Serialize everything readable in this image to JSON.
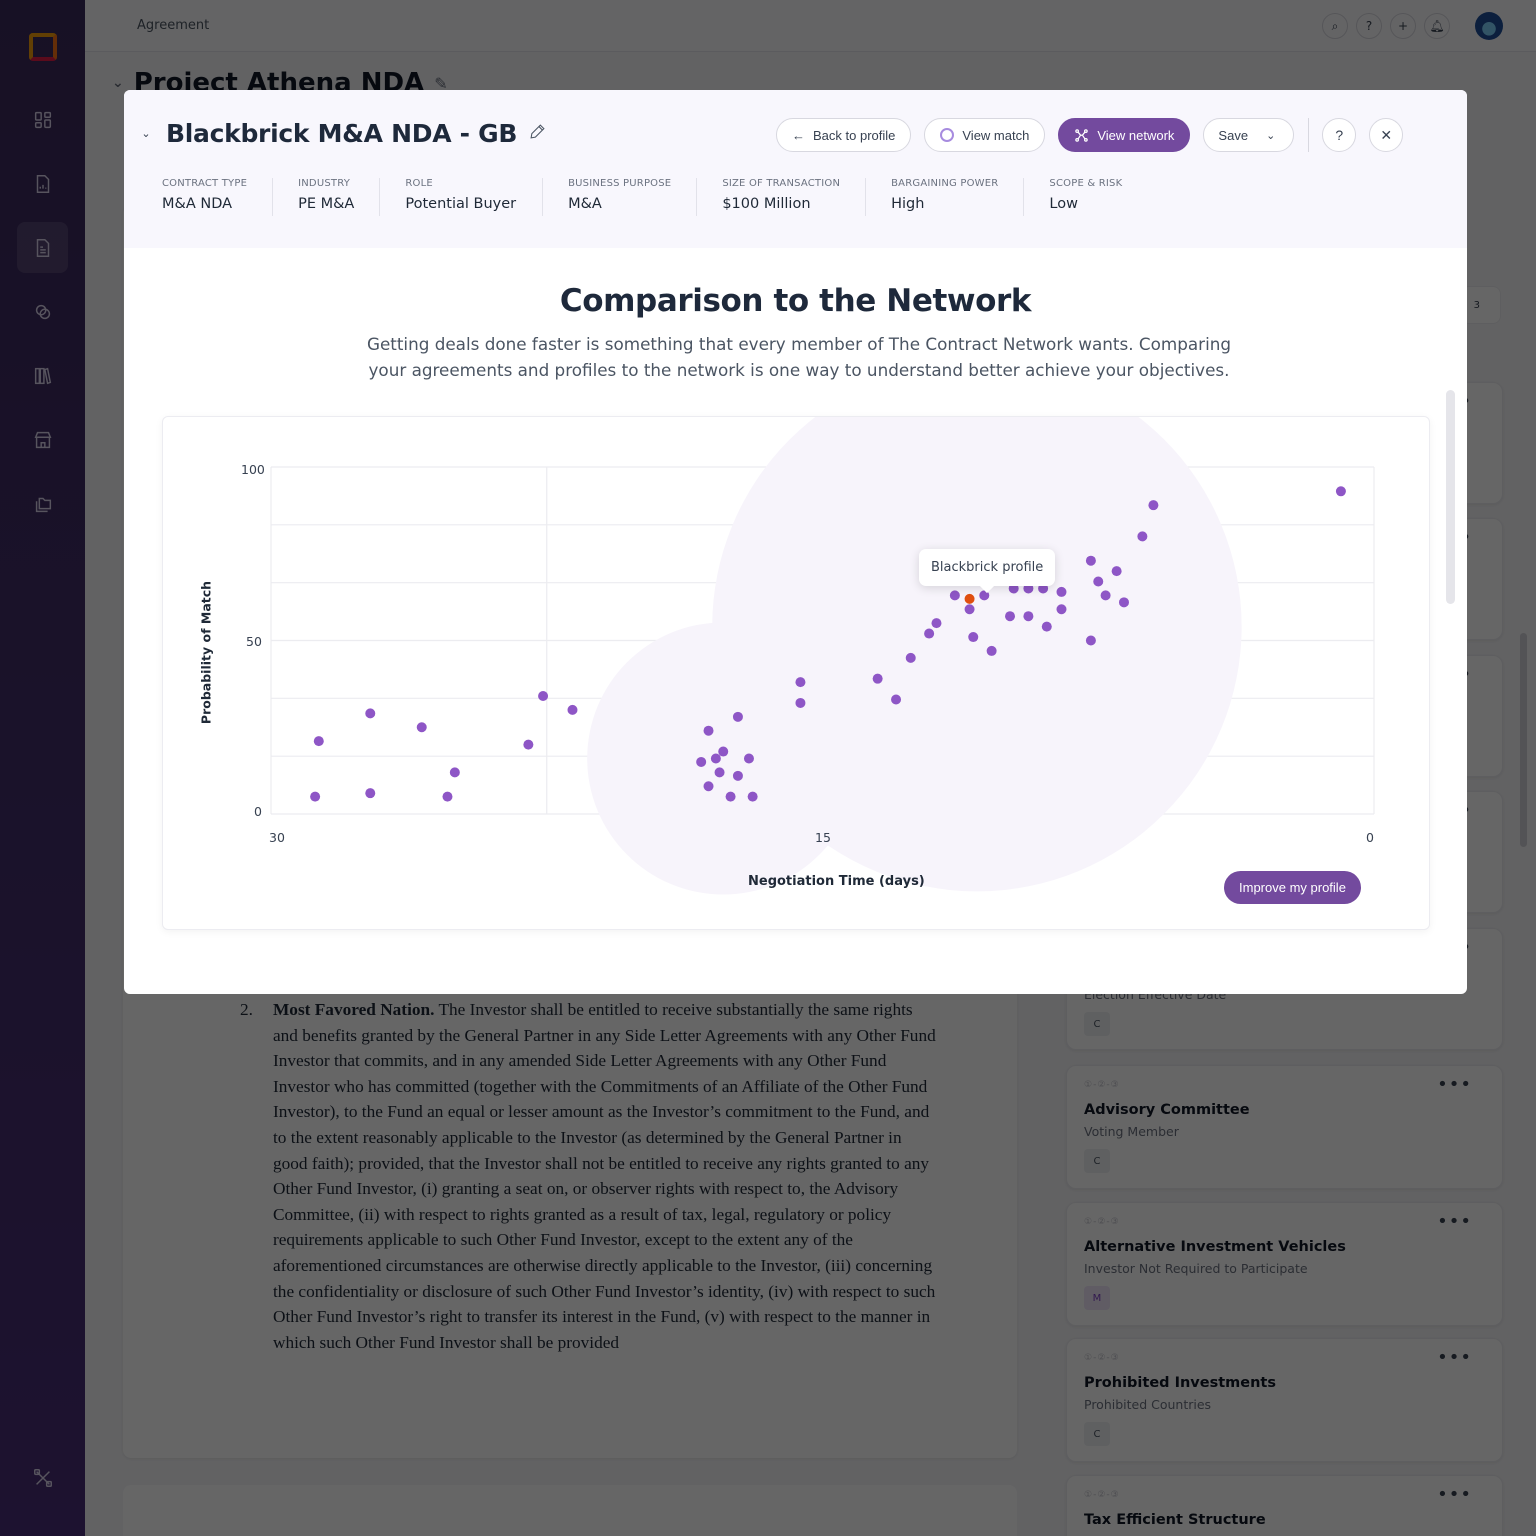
{
  "app": {
    "breadcrumb": "Agreement",
    "project_title": "Project Athena NDA",
    "topbar_icons": [
      "search-icon",
      "help-icon",
      "plus-icon",
      "bell-icon"
    ],
    "sidebar_items": [
      "dashboard-icon",
      "report-icon",
      "document-icon",
      "link-icon",
      "library-icon",
      "store-icon",
      "folders-icon",
      "tools-icon"
    ],
    "sidebar_active_index": 2
  },
  "document": {
    "clause_number": "2.",
    "clause_heading": "Most Favored Nation.",
    "clause_body": "The Investor shall be entitled to receive substantially the same rights and benefits granted by the General Partner in any Side Letter Agreements with any Other Fund Investor that commits, and in any amended Side Letter Agreements with any Other Fund Investor who has committed (together with the Commitments of an Affiliate of the Other Fund Investor), to the Fund an equal or lesser amount as the Investor’s commitment to the Fund, and to the extent reasonably applicable to the Investor (as determined by the General Partner in good faith); provided, that the Investor shall not be entitled to receive any rights granted to any Other Fund Investor, (i) granting a seat on, or observer rights with respect to, the Advisory Committee, (ii) with respect to rights granted as a result of tax, legal, regulatory or policy requirements applicable to such Other Fund Investor, except to the extent any of the aforementioned circumstances are otherwise directly applicable to the Investor, (iii) concerning the confidentiality or disclosure of such Other Fund Investor’s identity, (iv) with respect to such Other Fund Investor’s right to transfer its interest in the Fund, (v) with respect to the manner in which such Other Fund Investor shall be provided"
  },
  "side_cards": {
    "badge_count": "3",
    "partial_card": {
      "subtitle": "Election Effective Date",
      "tag": "C"
    },
    "cards": [
      {
        "steps": "①-②-③",
        "title": "Advisory Committee",
        "subtitle": "Voting Member",
        "tag": "C"
      },
      {
        "steps": "①-②-③",
        "title": "Alternative Investment Vehicles",
        "subtitle": "Investor Not Required to Participate",
        "tag": "M"
      },
      {
        "steps": "①-②-③",
        "title": "Prohibited Investments",
        "subtitle": "Prohibited Countries",
        "tag": "C"
      },
      {
        "steps": "①-②-③",
        "title": "Tax Efficient Structure",
        "subtitle": "",
        "tag": ""
      }
    ]
  },
  "modal": {
    "title": "Blackbrick M&A NDA - GB",
    "actions": {
      "back": "Back to profile",
      "view_match": "View match",
      "view_network": "View network",
      "save": "Save",
      "help": "?",
      "close": "✕"
    },
    "meta": [
      {
        "label": "CONTRACT TYPE",
        "value": "M&A NDA"
      },
      {
        "label": "INDUSTRY",
        "value": "PE M&A"
      },
      {
        "label": "ROLE",
        "value": "Potential Buyer"
      },
      {
        "label": "BUSINESS PURPOSE",
        "value": "M&A"
      },
      {
        "label": "SIZE OF TRANSACTION",
        "value": "$100 Million"
      },
      {
        "label": "BARGAINING POWER",
        "value": "High"
      },
      {
        "label": "SCOPE & RISK",
        "value": "Low"
      }
    ],
    "section_title": "Comparison to the Network",
    "section_desc": "Getting deals done faster is something that every member of The Contract Network wants. Comparing your agreements and profiles to the network is one way to understand better achieve your objectives.",
    "improve_button": "Improve my profile",
    "tooltip": "Blackbrick profile",
    "colors": {
      "accent": "#734a9e",
      "point": "#8e56c6",
      "highlight": "#e0500f",
      "cluster_bg": "#f7f4fb"
    }
  },
  "chart_data": {
    "type": "scatter",
    "title": "Comparison to the Network",
    "xlabel": "Negotiation Time (days)",
    "ylabel": "Probability of Match",
    "xlim": [
      30,
      0
    ],
    "ylim": [
      0,
      100
    ],
    "x_ticks": [
      "30",
      "15",
      "0"
    ],
    "y_ticks": [
      "100",
      "50",
      "0"
    ],
    "grid": true,
    "x_reversed": true,
    "series": [
      {
        "name": "Network",
        "points": [
          [
            28.8,
            5
          ],
          [
            28.7,
            21
          ],
          [
            27.3,
            29
          ],
          [
            27.3,
            6
          ],
          [
            25.9,
            25
          ],
          [
            25.2,
            5
          ],
          [
            25.0,
            12
          ],
          [
            23.0,
            20
          ],
          [
            22.6,
            34
          ],
          [
            21.8,
            30
          ],
          [
            18.3,
            15
          ],
          [
            18.1,
            24
          ],
          [
            17.9,
            16
          ],
          [
            17.8,
            12
          ],
          [
            18.1,
            8
          ],
          [
            17.7,
            18
          ],
          [
            17.5,
            5
          ],
          [
            17.3,
            28
          ],
          [
            17.3,
            11
          ],
          [
            17.0,
            16
          ],
          [
            16.9,
            5
          ],
          [
            15.6,
            38
          ],
          [
            15.6,
            32
          ],
          [
            13.5,
            39
          ],
          [
            13.0,
            33
          ],
          [
            12.6,
            45
          ],
          [
            12.1,
            52
          ],
          [
            11.9,
            55
          ],
          [
            11.4,
            63
          ],
          [
            11.0,
            59
          ],
          [
            10.9,
            51
          ],
          [
            10.6,
            63
          ],
          [
            10.4,
            47
          ],
          [
            9.9,
            57
          ],
          [
            9.8,
            65
          ],
          [
            9.4,
            65
          ],
          [
            9.4,
            57
          ],
          [
            9.0,
            65
          ],
          [
            8.9,
            54
          ],
          [
            8.5,
            64
          ],
          [
            8.5,
            59
          ],
          [
            7.7,
            50
          ],
          [
            7.7,
            73
          ],
          [
            7.5,
            67
          ],
          [
            7.3,
            63
          ],
          [
            7.0,
            70
          ],
          [
            6.8,
            61
          ],
          [
            6.3,
            80
          ],
          [
            6.0,
            89
          ],
          [
            0.9,
            93
          ]
        ]
      },
      {
        "name": "Blackbrick profile",
        "points": [
          [
            11.0,
            62
          ]
        ]
      }
    ],
    "clusters": [
      {
        "center": [
          17.7,
          16
        ],
        "radius_days": 3.7
      },
      {
        "center": [
          10.8,
          54
        ],
        "radius_days": 7.2
      }
    ],
    "annotations": [
      "Blackbrick profile"
    ]
  }
}
